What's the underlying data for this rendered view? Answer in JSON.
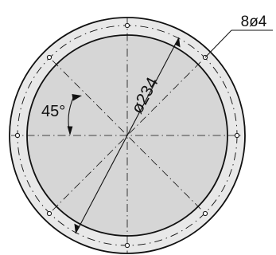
{
  "drawing": {
    "hole_callout": "8ø4",
    "diameter_label": "ø234",
    "angle_label": "45°"
  },
  "colors": {
    "ring_fill": "#e8e8e8",
    "disk_fill": "#d6d6d6",
    "line": "#111111"
  }
}
